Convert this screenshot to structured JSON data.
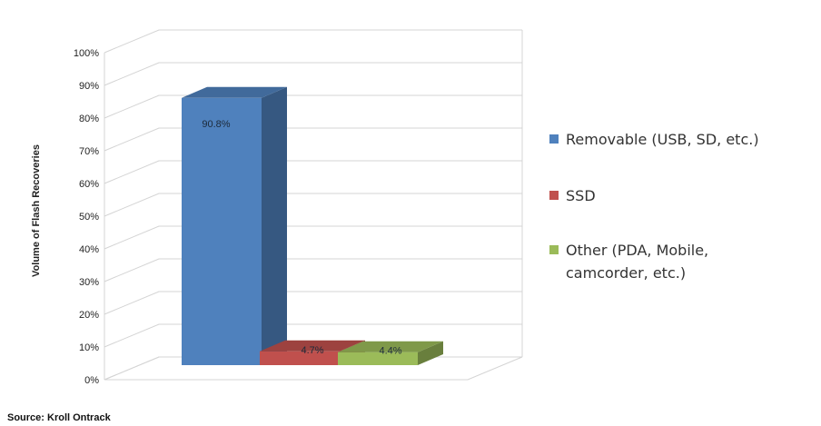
{
  "chart_data": {
    "type": "bar",
    "title": "",
    "xlabel": "",
    "ylabel": "Volume of Flash Recoveries",
    "ylim": [
      0,
      100
    ],
    "y_ticks": [
      "0%",
      "10%",
      "20%",
      "30%",
      "40%",
      "50%",
      "60%",
      "70%",
      "80%",
      "90%",
      "100%"
    ],
    "grid": true,
    "three_d": true,
    "legend_position": "right",
    "series": [
      {
        "name": "Removable (USB, SD, etc.)",
        "value": 90.8,
        "label": "90.8%",
        "color": "#4f81bd",
        "legend_lines": [
          "Removable (USB, SD, etc.)"
        ]
      },
      {
        "name": "SSD",
        "value": 4.7,
        "label": "4.7%",
        "color": "#c0504d",
        "legend_lines": [
          "SSD"
        ]
      },
      {
        "name": "Other (PDA, Mobile, camcorder, etc.)",
        "value": 4.4,
        "label": "4.4%",
        "color": "#9bbb59",
        "legend_lines": [
          "Other (PDA, Mobile,",
          "camcorder, etc.)"
        ]
      }
    ]
  },
  "source": "Source: Kroll Ontrack"
}
